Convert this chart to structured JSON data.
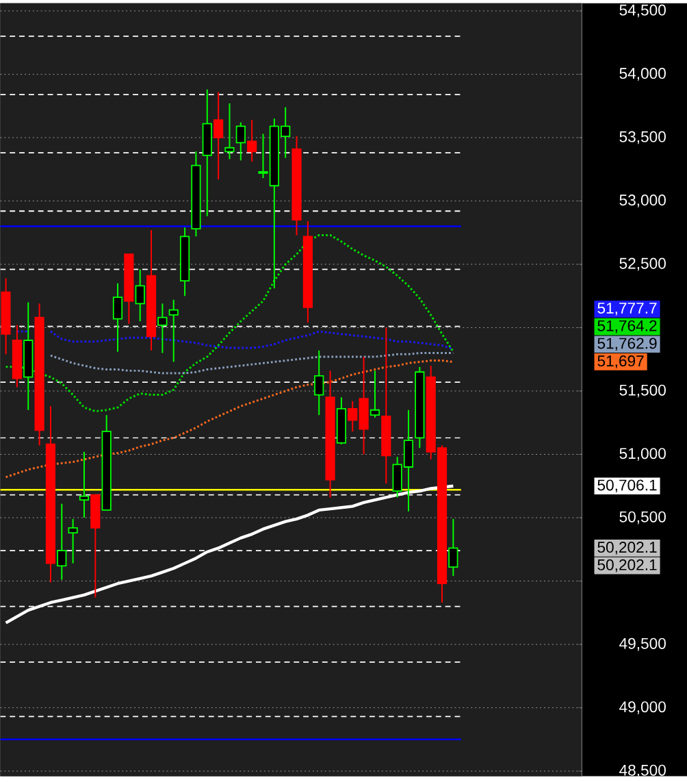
{
  "chart_data": {
    "type": "candlestick",
    "categories": [
      null,
      null,
      null,
      null,
      null,
      null,
      null,
      null,
      null,
      null,
      null,
      null,
      null,
      null,
      null,
      null,
      null,
      null,
      null,
      null,
      null,
      null,
      null,
      null,
      null,
      null,
      null,
      null,
      null,
      null,
      null,
      null,
      null,
      null,
      null,
      null,
      null,
      null,
      null,
      null,
      null,
      null,
      null,
      null,
      null,
      null,
      null,
      null,
      null,
      null,
      null,
      null
    ],
    "ohlc": [
      [
        52280,
        52390,
        51790,
        51950
      ],
      [
        51900,
        52020,
        51530,
        51600
      ],
      [
        51610,
        52200,
        51350,
        51900
      ],
      [
        52080,
        52190,
        51070,
        51190
      ],
      [
        51080,
        51380,
        49990,
        50140
      ],
      [
        50120,
        50610,
        50010,
        50240
      ],
      [
        50380,
        50490,
        50140,
        50420
      ],
      [
        50640,
        51020,
        50500,
        50670
      ],
      [
        50680,
        50680,
        49870,
        50420
      ],
      [
        50560,
        51310,
        50560,
        51180
      ],
      [
        52070,
        52350,
        51810,
        52240
      ],
      [
        52580,
        52580,
        52030,
        52210
      ],
      [
        52190,
        52460,
        52050,
        52330
      ],
      [
        52410,
        52770,
        51820,
        51930
      ],
      [
        52020,
        52190,
        51800,
        52080
      ],
      [
        52100,
        52220,
        51730,
        52140
      ],
      [
        52370,
        52790,
        52250,
        52720
      ],
      [
        52780,
        53390,
        52720,
        53280
      ],
      [
        53360,
        53880,
        52880,
        53610
      ],
      [
        53640,
        53860,
        53170,
        53500
      ],
      [
        53390,
        53770,
        53330,
        53420
      ],
      [
        53460,
        53620,
        53320,
        53590
      ],
      [
        53470,
        53640,
        53310,
        53390
      ],
      [
        53220,
        53530,
        53180,
        53230
      ],
      [
        53120,
        53650,
        52310,
        53590
      ],
      [
        53510,
        53740,
        53340,
        53590
      ],
      [
        53410,
        53510,
        52730,
        52850
      ],
      [
        52720,
        52840,
        52040,
        52160
      ],
      [
        51470,
        51820,
        51310,
        51620
      ],
      [
        51450,
        51660,
        50660,
        50800
      ],
      [
        51090,
        51450,
        51080,
        51360
      ],
      [
        51360,
        51420,
        51180,
        51270
      ],
      [
        51440,
        51770,
        51000,
        51200
      ],
      [
        51310,
        51660,
        51290,
        51350
      ],
      [
        51300,
        52000,
        50770,
        50990
      ],
      [
        50710,
        50980,
        50660,
        50920
      ],
      [
        50900,
        51350,
        50550,
        51110
      ],
      [
        51130,
        51690,
        51050,
        51650
      ],
      [
        51610,
        51700,
        50960,
        51020
      ],
      [
        51050,
        51070,
        49830,
        49980
      ],
      [
        50110,
        50490,
        50040,
        50260
      ],
      null,
      null,
      null,
      null,
      null,
      null,
      null,
      null,
      null,
      null,
      null
    ],
    "colors": [
      "#ff0000",
      "#ff0000",
      "#00ff00",
      "#ff0000",
      "#ff0000",
      "#00ff00",
      "#00ff00",
      "#00ff00",
      "#ff0000",
      "#00ff00",
      "#00ff00",
      "#ff0000",
      "#00ff00",
      "#ff0000",
      "#00ff00",
      "#00ff00",
      "#00ff00",
      "#00ff00",
      "#00ff00",
      "#ff0000",
      "#00ff00",
      "#00ff00",
      "#ff0000",
      "#00ff00",
      "#00ff00",
      "#00ff00",
      "#ff0000",
      "#ff0000",
      "#00ff00",
      "#ff0000",
      "#00ff00",
      "#ff0000",
      "#ff0000",
      "#00ff00",
      "#ff0000",
      "#00ff00",
      "#00ff00",
      "#00ff00",
      "#ff0000",
      "#ff0000",
      "#00ff00",
      null,
      null,
      null,
      null,
      null,
      null,
      null,
      null,
      null,
      null,
      null
    ],
    "series": [
      {
        "type": "line",
        "color": "#1a1aff",
        "line_style": "dotted",
        "values": [
          null,
          51970,
          51970,
          null,
          51970,
          51910,
          51890,
          51890,
          51890,
          51900,
          51910,
          51920,
          51920,
          51920,
          51910,
          51900,
          51890,
          51880,
          51860,
          51850,
          51840,
          51840,
          51840,
          51850,
          51870,
          51900,
          51920,
          51940,
          51970,
          51960,
          51950,
          51940,
          51930,
          51920,
          51910,
          51890,
          51890,
          51880,
          51870,
          51860,
          51830,
          null,
          null,
          null,
          null,
          null,
          null,
          null,
          null,
          null,
          null,
          null
        ]
      },
      {
        "type": "line",
        "color": "#00e000",
        "line_style": "dotted",
        "values": [
          51690,
          51690,
          51680,
          51640,
          51610,
          51560,
          51470,
          51370,
          51340,
          51350,
          51370,
          51440,
          51480,
          51470,
          51470,
          51510,
          51650,
          51720,
          51770,
          51860,
          51960,
          52050,
          52130,
          52210,
          52370,
          52500,
          52580,
          52680,
          52730,
          52730,
          52680,
          52620,
          52570,
          52530,
          52480,
          52410,
          52330,
          52230,
          52100,
          51950,
          51810,
          null,
          null,
          null,
          null,
          null,
          null,
          null,
          null,
          null,
          null,
          null
        ]
      },
      {
        "type": "line",
        "color": "#8aa0c0",
        "line_style": "dotted",
        "values": [
          null,
          null,
          null,
          null,
          51780,
          51750,
          51720,
          51700,
          51680,
          51670,
          51670,
          51660,
          51660,
          51650,
          51640,
          51640,
          51640,
          51650,
          51670,
          51680,
          51690,
          51700,
          51710,
          51720,
          51730,
          51740,
          51750,
          51760,
          51770,
          51770,
          51770,
          51770,
          51770,
          51770,
          51780,
          51790,
          51790,
          51800,
          51800,
          51800,
          51800,
          null,
          null,
          null,
          null,
          null,
          null,
          null,
          null,
          null,
          null,
          null
        ]
      },
      {
        "type": "line",
        "color": "#ff6a20",
        "line_style": "dotted",
        "values": [
          50820,
          50850,
          50880,
          50900,
          50920,
          50930,
          50940,
          50960,
          50980,
          51000,
          51010,
          51030,
          51060,
          51080,
          51110,
          51130,
          51170,
          51210,
          51260,
          51300,
          51340,
          51380,
          51410,
          51440,
          51470,
          51500,
          51530,
          51550,
          51560,
          51570,
          51600,
          51630,
          51650,
          51670,
          51690,
          51700,
          51720,
          51730,
          51740,
          51740,
          51730,
          null,
          null,
          null,
          null,
          null,
          null,
          null,
          null,
          null,
          null,
          null
        ]
      },
      {
        "type": "line",
        "color": "#ffffff",
        "line_style": "solid",
        "values": [
          49670,
          49720,
          49770,
          49800,
          49830,
          49850,
          49870,
          49890,
          49920,
          49950,
          49980,
          50000,
          50020,
          50040,
          50070,
          50100,
          50140,
          50180,
          50230,
          50260,
          50300,
          50340,
          50370,
          50410,
          50440,
          50470,
          50490,
          50520,
          50560,
          50570,
          50580,
          50590,
          50620,
          50640,
          50660,
          50680,
          50700,
          50710,
          50730,
          50740,
          50750,
          null,
          null,
          null,
          null,
          null,
          null,
          null,
          null,
          null,
          null,
          null
        ]
      }
    ],
    "ylim": [
      48460,
      54560
    ],
    "yticks": [
      {
        "value": 48500,
        "label": "48,500"
      },
      {
        "value": 49000,
        "label": "49,000"
      },
      {
        "value": 49500,
        "label": "49,500"
      },
      {
        "value": 50000,
        "label": null
      },
      {
        "value": 50500,
        "label": "50,500"
      },
      {
        "value": 51000,
        "label": "51,000"
      },
      {
        "value": 51500,
        "label": "51,500"
      },
      {
        "value": 52000,
        "label": null
      },
      {
        "value": 52500,
        "label": "52,500"
      },
      {
        "value": 53000,
        "label": "53,000"
      },
      {
        "value": 53500,
        "label": "53,500"
      },
      {
        "value": 54000,
        "label": "54,000"
      },
      {
        "value": 54500,
        "label": "54,500"
      }
    ],
    "tick_labels": "y",
    "grid": "y",
    "ref_lines": [
      {
        "axis": "y",
        "value": 52800,
        "color": "#0000ff",
        "line_style": "solid"
      },
      {
        "axis": "y",
        "value": 48750,
        "color": "#0000ff",
        "line_style": "solid"
      },
      {
        "axis": "y",
        "value": 50720,
        "color": "#ffff00",
        "line_style": "solid"
      },
      {
        "axis": "y",
        "value": 54300,
        "color": "#ffffff",
        "line_style": "dashed"
      },
      {
        "axis": "y",
        "value": 53840,
        "color": "#ffffff",
        "line_style": "dashed"
      },
      {
        "axis": "y",
        "value": 53380,
        "color": "#ffffff",
        "line_style": "dashed"
      },
      {
        "axis": "y",
        "value": 52920,
        "color": "#ffffff",
        "line_style": "dashed"
      },
      {
        "axis": "y",
        "value": 52460,
        "color": "#ffffff",
        "line_style": "dashed"
      },
      {
        "axis": "y",
        "value": 52010,
        "color": "#ffffff",
        "line_style": "dashed"
      },
      {
        "axis": "y",
        "value": 51570,
        "color": "#ffffff",
        "line_style": "dashed"
      },
      {
        "axis": "y",
        "value": 51130,
        "color": "#ffffff",
        "line_style": "dashed"
      },
      {
        "axis": "y",
        "value": 50680,
        "color": "#ffffff",
        "line_style": "dashed"
      },
      {
        "axis": "y",
        "value": 50240,
        "color": "#ffffff",
        "line_style": "dashed"
      },
      {
        "axis": "y",
        "value": 49800,
        "color": "#ffffff",
        "line_style": "dashed"
      },
      {
        "axis": "y",
        "value": 49360,
        "color": "#ffffff",
        "line_style": "dashed"
      },
      {
        "axis": "y",
        "value": 48930,
        "color": "#ffffff",
        "line_style": "dashed"
      }
    ],
    "annotations": [
      "51,777.7",
      "51,764.2",
      "51,762.9",
      "51,697",
      "50,706.1",
      "50,202.1",
      "50,202.1"
    ]
  }
}
